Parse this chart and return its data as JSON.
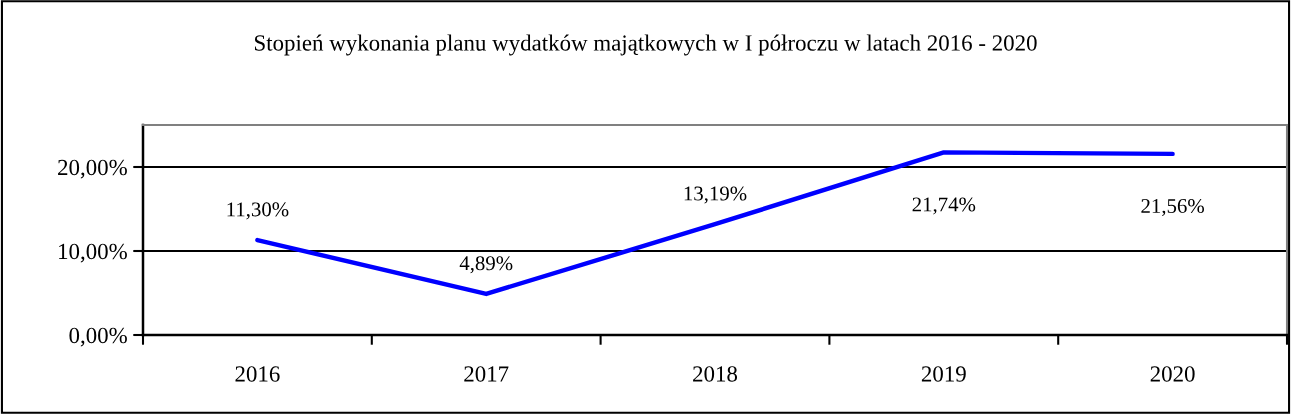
{
  "chart_data": {
    "type": "line",
    "title": "Stopień wykonania planu wydatków majątkowych w I półroczu w latach 2016 - 2020",
    "categories": [
      "2016",
      "2017",
      "2018",
      "2019",
      "2020"
    ],
    "series": [
      {
        "color": "#0000ff",
        "values": [
          11.3,
          4.89,
          13.19,
          21.74,
          21.56
        ],
        "value_labels": [
          "11,30%",
          "4,89%",
          "13,19%",
          "21,74%",
          "21,56%"
        ]
      }
    ],
    "ylim": [
      0,
      25
    ],
    "yticks": [
      {
        "value": 0,
        "label": "0,00%"
      },
      {
        "value": 10,
        "label": "10,00%"
      },
      {
        "value": 20,
        "label": "20,00%"
      }
    ],
    "grid": "y",
    "marker": "none",
    "line_style": "solid"
  }
}
